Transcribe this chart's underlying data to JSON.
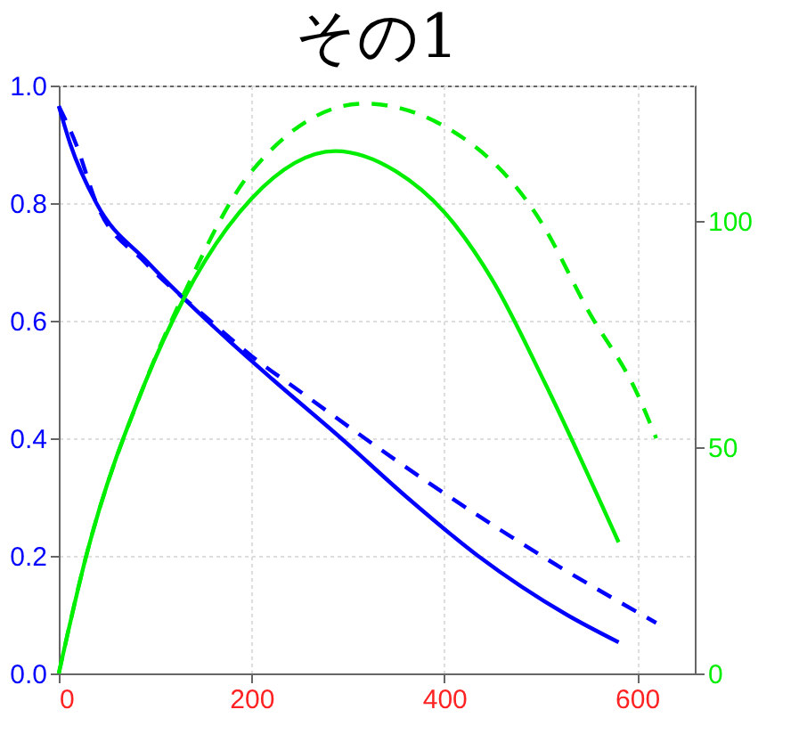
{
  "chart_data": {
    "type": "line",
    "title": "その1",
    "xlim": [
      0,
      660
    ],
    "xticks": [
      0,
      200,
      400,
      600
    ],
    "ylim": [
      0,
      1
    ],
    "yticks": [
      {
        "value": 0,
        "label": "0.0"
      },
      0.2,
      0.4,
      0.6,
      0.8,
      {
        "value": 1,
        "label": "1.0"
      }
    ],
    "y2lim": [
      0,
      130
    ],
    "y2ticks": [
      0,
      50,
      100
    ],
    "grid": true,
    "marker": "none",
    "series": [
      {
        "color": "#0000ff",
        "line_style": "solid",
        "x": [
          0,
          12,
          39,
          92,
          154,
          222,
          293,
          361,
          435,
          527,
          581
        ],
        "values": [
          0.965,
          0.9,
          0.8,
          0.7,
          0.6,
          0.5,
          0.4,
          0.3,
          0.2,
          0.1,
          0.053
        ]
      },
      {
        "color": "#0000ff",
        "line_style": "dashed",
        "x": [
          0,
          18,
          39,
          89,
          150,
          200,
          250,
          385,
          520,
          620
        ],
        "values": [
          0.965,
          0.9,
          0.8,
          0.7,
          0.61,
          0.54,
          0.48,
          0.323,
          0.181,
          0.086
        ]
      },
      {
        "color": "#00ee00",
        "line_style": "solid",
        "axis": "y2",
        "x": [
          0,
          28,
          89,
          130,
          200,
          287,
          350,
          400,
          450,
          505,
          581
        ],
        "values": [
          0,
          25.6,
          64,
          83,
          105,
          115.5,
          111,
          102,
          87,
          64,
          29
        ]
      },
      {
        "color": "#00ee00",
        "line_style": "dashed",
        "axis": "y2",
        "x": [
          0,
          28,
          89,
          130,
          200,
          317,
          400,
          500,
          550,
          600,
          620
        ],
        "values": [
          0,
          25.6,
          64,
          84,
          111,
          126,
          121,
          100,
          80,
          62,
          52
        ]
      }
    ]
  }
}
